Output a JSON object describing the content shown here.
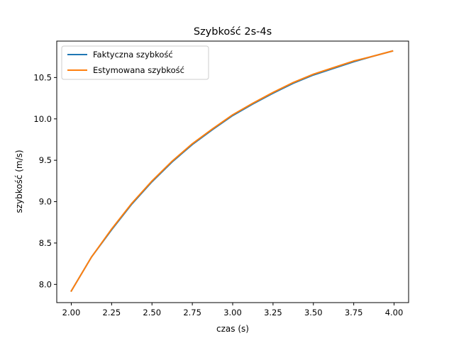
{
  "chart_data": {
    "type": "line",
    "title": "Szybkość 2s-4s",
    "xlabel": "czas (s)",
    "ylabel": "szybkość (m/s)",
    "xlim": [
      1.91,
      4.09
    ],
    "ylim": [
      7.78,
      10.94
    ],
    "xticks": [
      2.0,
      2.25,
      2.5,
      2.75,
      3.0,
      3.25,
      3.5,
      3.75,
      4.0
    ],
    "xtick_labels": [
      "2.00",
      "2.25",
      "2.50",
      "2.75",
      "3.00",
      "3.25",
      "3.50",
      "3.75",
      "4.00"
    ],
    "yticks": [
      8.0,
      8.5,
      9.0,
      9.5,
      10.0,
      10.5
    ],
    "ytick_labels": [
      "8.0",
      "8.5",
      "9.0",
      "9.5",
      "10.0",
      "10.5"
    ],
    "grid": false,
    "legend_position": "top-left",
    "x": [
      2.0,
      2.125,
      2.25,
      2.375,
      2.5,
      2.625,
      2.75,
      2.875,
      3.0,
      3.125,
      3.25,
      3.375,
      3.5,
      3.625,
      3.75,
      3.875,
      3.99
    ],
    "series": [
      {
        "name": "Faktyczna szybkość",
        "color": "#1f77b4",
        "values": [
          7.92,
          8.33,
          8.66,
          8.97,
          9.24,
          9.48,
          9.69,
          9.87,
          10.04,
          10.18,
          10.31,
          10.43,
          10.53,
          10.61,
          10.69,
          10.76,
          10.82
        ]
      },
      {
        "name": "Estymowana szybkość",
        "color": "#ff7f0e",
        "values": [
          7.92,
          8.33,
          8.67,
          8.98,
          9.25,
          9.49,
          9.7,
          9.88,
          10.05,
          10.19,
          10.32,
          10.44,
          10.54,
          10.62,
          10.7,
          10.76,
          10.82
        ]
      }
    ]
  }
}
